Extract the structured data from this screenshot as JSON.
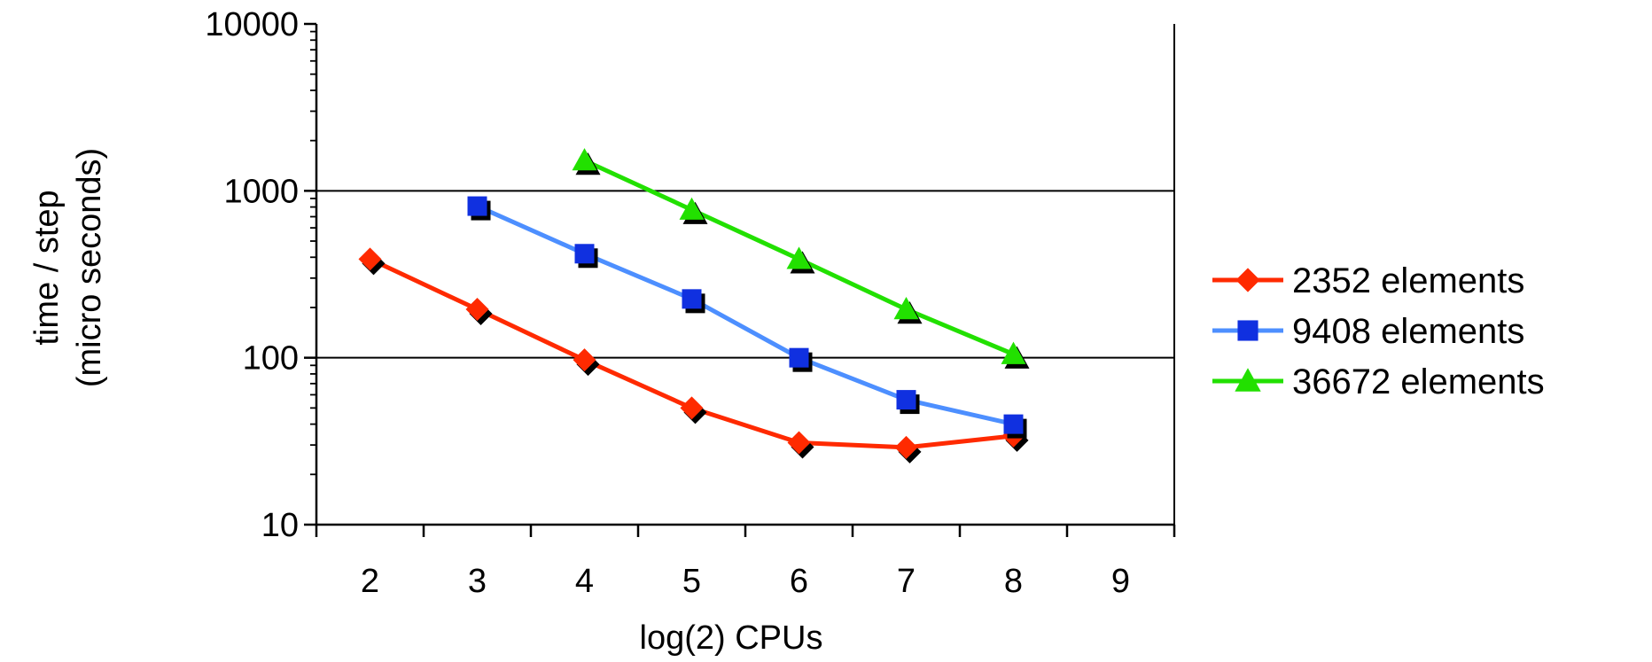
{
  "chart_data": {
    "type": "line",
    "title": "",
    "xlabel": "log(2) CPUs",
    "ylabel_line1": "time / step",
    "ylabel_line2": "(micro seconds)",
    "y_scale": "log",
    "ylim": [
      10,
      10000
    ],
    "xlim": [
      1.5,
      9.5
    ],
    "x_ticks": [
      "2",
      "3",
      "4",
      "5",
      "6",
      "7",
      "8",
      "9"
    ],
    "y_ticks": [
      "10",
      "100",
      "1000",
      "10000"
    ],
    "grid": "horizontal major lines",
    "legend_position": "right",
    "series": [
      {
        "name": "2352 elements",
        "color": "#ff2a00",
        "marker": "diamond",
        "x": [
          2,
          3,
          4,
          5,
          6,
          7,
          8
        ],
        "values": [
          390,
          195,
          97,
          50,
          31,
          29,
          34
        ]
      },
      {
        "name": "9408 elements",
        "color": "#4d8fff",
        "marker_color": "#1030e0",
        "marker": "square",
        "x": [
          3,
          4,
          5,
          6,
          7,
          8
        ],
        "values": [
          810,
          420,
          225,
          100,
          56,
          40
        ]
      },
      {
        "name": "36672 elements",
        "color": "#22e000",
        "marker": "triangle",
        "x": [
          4,
          5,
          6,
          7,
          8
        ],
        "values": [
          1520,
          770,
          390,
          195,
          105
        ]
      }
    ]
  }
}
